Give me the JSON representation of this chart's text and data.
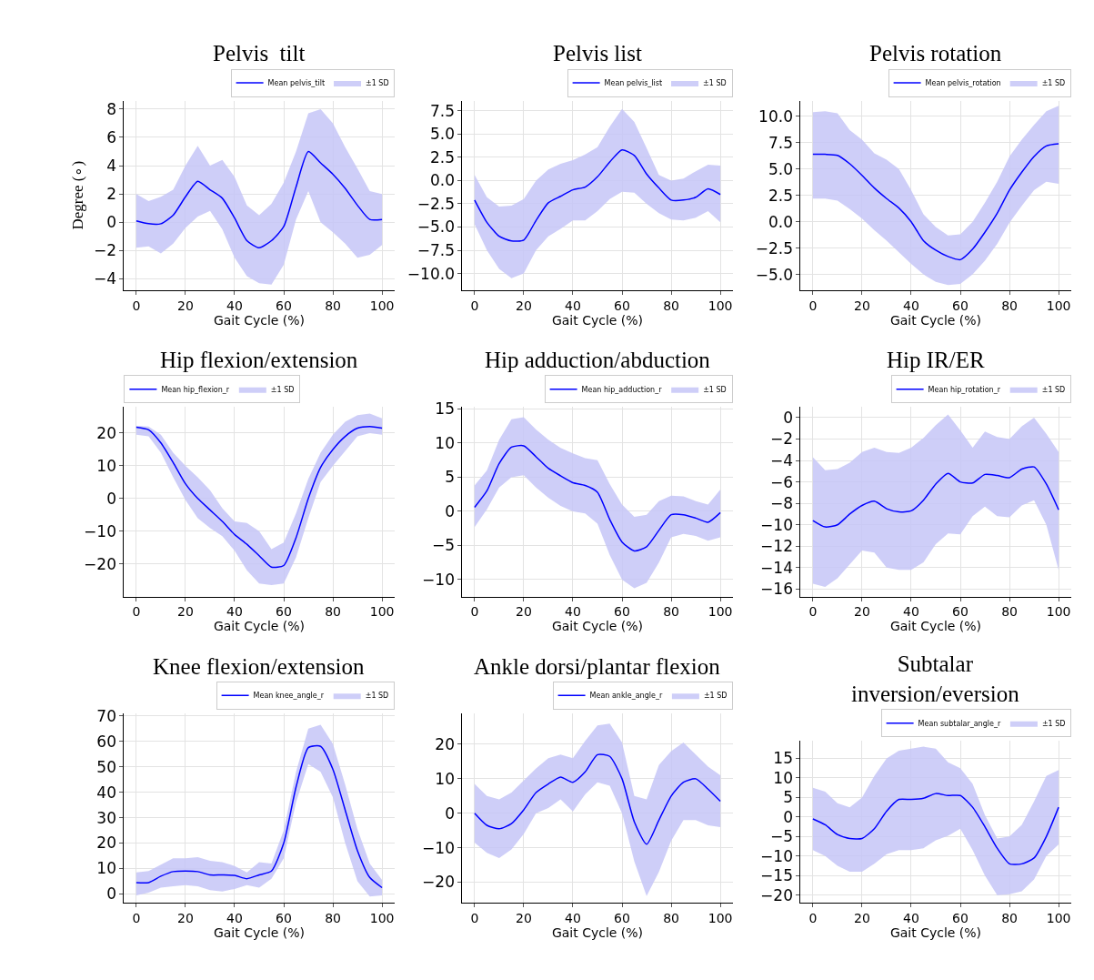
{
  "chart_data": [
    {
      "type": "line",
      "title": "Pelvis  tilt",
      "xlabel": "Gait Cycle (%)",
      "ylabel": "Degree (∘)",
      "x": [
        0,
        5,
        10,
        15,
        20,
        25,
        30,
        35,
        40,
        45,
        50,
        55,
        60,
        65,
        70,
        75,
        80,
        85,
        90,
        95,
        100
      ],
      "xlim": [
        -5,
        105
      ],
      "xticks": [
        0,
        20,
        40,
        60,
        80,
        100
      ],
      "ylim": [
        -4.8,
        8.6
      ],
      "yticks": [
        -4,
        -2,
        0,
        2,
        4,
        6,
        8
      ],
      "grid": true,
      "legend": "top right",
      "series": [
        {
          "name": "Mean pelvis_tilt",
          "color": "#0000ff",
          "values": [
            0.1,
            -0.1,
            -0.1,
            0.5,
            1.8,
            2.9,
            2.3,
            1.7,
            0.3,
            -1.3,
            -1.8,
            -1.3,
            -0.3,
            2.5,
            5.0,
            4.2,
            3.4,
            2.4,
            1.2,
            0.2,
            0.2
          ]
        },
        {
          "name": "±1 SD",
          "type": "area",
          "color": "#c6c6f7",
          "values": [
            null,
            null,
            null,
            null,
            null,
            null,
            null,
            null,
            null,
            null,
            null,
            null,
            null,
            null,
            null,
            null,
            null,
            null,
            null,
            null,
            null
          ],
          "upper": [
            2.0,
            1.5,
            1.8,
            2.3,
            4.0,
            5.4,
            4.0,
            4.4,
            3.2,
            1.2,
            0.5,
            1.3,
            2.8,
            5.0,
            7.7,
            8.0,
            7.0,
            5.3,
            3.8,
            2.2,
            2.0
          ],
          "lower": [
            -1.8,
            -1.7,
            -2.2,
            -1.5,
            -0.4,
            0.4,
            0.8,
            -0.5,
            -2.5,
            -3.8,
            -4.3,
            -4.4,
            -3.0,
            0.2,
            2.2,
            0.0,
            -0.7,
            -1.5,
            -2.5,
            -2.3,
            -1.6
          ]
        }
      ]
    },
    {
      "type": "line",
      "title": "Pelvis list",
      "xlabel": "Gait Cycle (%)",
      "x": [
        0,
        5,
        10,
        15,
        20,
        25,
        30,
        35,
        40,
        45,
        50,
        55,
        60,
        65,
        70,
        75,
        80,
        85,
        90,
        95,
        100
      ],
      "xlim": [
        -5,
        105
      ],
      "xticks": [
        0,
        20,
        40,
        60,
        80,
        100
      ],
      "ylim": [
        -11.8,
        8.6
      ],
      "yticks": [
        {
          "value": -10,
          "label": "−10.0"
        },
        {
          "value": -7.5,
          "label": "−7.5"
        },
        {
          "value": -5,
          "label": "−5.0"
        },
        {
          "value": -2.5,
          "label": "−2.5"
        },
        {
          "value": 0,
          "label": "0.0"
        },
        {
          "value": 2.5,
          "label": "2.5"
        },
        {
          "value": 5,
          "label": "5.0"
        },
        {
          "value": 7.5,
          "label": "7.5"
        }
      ],
      "grid": true,
      "legend": "top right",
      "series": [
        {
          "name": "Mean pelvis_list",
          "color": "#0000ff",
          "values": [
            -2.1,
            -4.5,
            -6.0,
            -6.5,
            -6.4,
            -4.3,
            -2.4,
            -1.7,
            -1.0,
            -0.7,
            0.4,
            2.0,
            3.3,
            2.7,
            0.7,
            -0.8,
            -2.1,
            -2.1,
            -1.8,
            -0.9,
            -1.5
          ]
        },
        {
          "name": "±1 SD",
          "type": "area",
          "color": "#c6c6f7",
          "values": [
            null,
            null,
            null,
            null,
            null,
            null,
            null,
            null,
            null,
            null,
            null,
            null,
            null,
            null,
            null,
            null,
            null,
            null,
            null,
            null,
            null
          ],
          "upper": [
            0.6,
            -1.8,
            -2.8,
            -2.7,
            -2.0,
            0.0,
            1.2,
            1.8,
            2.2,
            2.8,
            3.6,
            5.8,
            7.7,
            6.3,
            3.5,
            0.6,
            0.0,
            0.2,
            1.0,
            1.7,
            1.6
          ],
          "lower": [
            -4.7,
            -7.5,
            -9.5,
            -10.5,
            -10.0,
            -7.5,
            -6.0,
            -5.2,
            -4.3,
            -4.3,
            -3.3,
            -2.0,
            -1.2,
            -1.3,
            -2.5,
            -3.5,
            -4.2,
            -4.3,
            -4.0,
            -3.3,
            -4.5
          ]
        }
      ]
    },
    {
      "type": "line",
      "title": "Pelvis rotation",
      "xlabel": "Gait Cycle (%)",
      "x": [
        0,
        5,
        10,
        15,
        20,
        25,
        30,
        35,
        40,
        45,
        50,
        55,
        60,
        65,
        70,
        75,
        80,
        85,
        90,
        95,
        100
      ],
      "xlim": [
        -5,
        105
      ],
      "xticks": [
        0,
        20,
        40,
        60,
        80,
        100
      ],
      "ylim": [
        -6.5,
        11.5
      ],
      "yticks": [
        {
          "value": -5,
          "label": "−5.0"
        },
        {
          "value": -2.5,
          "label": "−2.5"
        },
        {
          "value": 0,
          "label": "0.0"
        },
        {
          "value": 2.5,
          "label": "2.5"
        },
        {
          "value": 5,
          "label": "5.0"
        },
        {
          "value": 7.5,
          "label": "7.5"
        },
        {
          "value": 10,
          "label": "10.0"
        }
      ],
      "grid": true,
      "legend": "top right",
      "series": [
        {
          "name": "Mean pelvis_rotation",
          "color": "#0000ff",
          "values": [
            6.4,
            6.4,
            6.3,
            5.5,
            4.4,
            3.2,
            2.2,
            1.3,
            0.0,
            -1.8,
            -2.7,
            -3.3,
            -3.6,
            -2.6,
            -1.0,
            0.8,
            3.0,
            4.7,
            6.2,
            7.2,
            7.4
          ]
        },
        {
          "name": "±1 SD",
          "type": "area",
          "color": "#c6c6f7",
          "values": [
            null,
            null,
            null,
            null,
            null,
            null,
            null,
            null,
            null,
            null,
            null,
            null,
            null,
            null,
            null,
            null,
            null,
            null,
            null,
            null,
            null
          ],
          "upper": [
            10.4,
            10.5,
            10.3,
            8.7,
            7.8,
            6.5,
            5.9,
            5.0,
            3.0,
            0.7,
            -0.5,
            -1.3,
            -1.2,
            0.0,
            1.8,
            3.8,
            6.2,
            7.8,
            9.2,
            10.5,
            11.0
          ],
          "lower": [
            2.2,
            2.2,
            2.0,
            1.2,
            0.3,
            -0.8,
            -1.8,
            -2.9,
            -4.0,
            -5.0,
            -5.7,
            -6.0,
            -5.9,
            -5.0,
            -3.7,
            -2.1,
            -0.1,
            1.5,
            3.0,
            3.8,
            3.6
          ]
        }
      ]
    },
    {
      "type": "line",
      "title": "Hip flexion/extension",
      "xlabel": "Gait Cycle (%)",
      "x": [
        0,
        5,
        10,
        15,
        20,
        25,
        30,
        35,
        40,
        45,
        50,
        55,
        60,
        65,
        70,
        75,
        80,
        85,
        90,
        95,
        100
      ],
      "xlim": [
        -5,
        105
      ],
      "xticks": [
        0,
        20,
        40,
        60,
        80,
        100
      ],
      "ylim": [
        -30,
        28
      ],
      "yticks": [
        -20,
        -10,
        0,
        10,
        20
      ],
      "grid": true,
      "legend": "top left",
      "series": [
        {
          "name": "Mean hip_flexion_r",
          "color": "#0000ff",
          "values": [
            21.8,
            21.0,
            17.0,
            11.0,
            4.5,
            0.0,
            -3.5,
            -7.0,
            -11.0,
            -14.0,
            -17.5,
            -21.0,
            -20.5,
            -12.0,
            0.0,
            9.5,
            15.0,
            19.0,
            21.5,
            22.0,
            21.5
          ]
        },
        {
          "name": "±1 SD",
          "type": "area",
          "color": "#c6c6f7",
          "values": [
            null,
            null,
            null,
            null,
            null,
            null,
            null,
            null,
            null,
            null,
            null,
            null,
            null,
            null,
            null,
            null,
            null,
            null,
            null,
            null,
            null
          ],
          "upper": [
            22.2,
            22.0,
            19.5,
            14.0,
            10.0,
            6.5,
            2.5,
            -3.0,
            -7.0,
            -7.5,
            -10.0,
            -15.5,
            -13.5,
            -4.5,
            6.0,
            14.0,
            19.5,
            23.5,
            25.5,
            26.0,
            24.5
          ],
          "lower": [
            19.5,
            19.0,
            14.0,
            6.5,
            -0.5,
            -6.0,
            -9.0,
            -11.5,
            -16.0,
            -22.0,
            -26.0,
            -26.5,
            -26.0,
            -18.0,
            -6.0,
            5.0,
            10.0,
            14.5,
            19.0,
            20.0,
            19.5
          ]
        }
      ]
    },
    {
      "type": "line",
      "title": "Hip adduction/abduction",
      "xlabel": "Gait Cycle (%)",
      "x": [
        0,
        5,
        10,
        15,
        20,
        25,
        30,
        35,
        40,
        45,
        50,
        55,
        60,
        65,
        70,
        75,
        80,
        85,
        90,
        95,
        100
      ],
      "xlim": [
        -5,
        105
      ],
      "xticks": [
        0,
        20,
        40,
        60,
        80,
        100
      ],
      "ylim": [
        -12.5,
        15.3
      ],
      "yticks": [
        -10,
        -5,
        0,
        5,
        10,
        15
      ],
      "grid": true,
      "legend": "top right",
      "series": [
        {
          "name": "Mean hip_adduction_r",
          "color": "#0000ff",
          "values": [
            0.6,
            3.0,
            7.0,
            9.4,
            9.6,
            8.0,
            6.3,
            5.2,
            4.2,
            3.8,
            2.8,
            -1.2,
            -4.5,
            -5.8,
            -5.2,
            -2.8,
            -0.5,
            -0.5,
            -1.0,
            -1.6,
            -0.2
          ]
        },
        {
          "name": "±1 SD",
          "type": "area",
          "color": "#c6c6f7",
          "values": [
            null,
            null,
            null,
            null,
            null,
            null,
            null,
            null,
            null,
            null,
            null,
            null,
            null,
            null,
            null,
            null,
            null,
            null,
            null,
            null,
            null
          ],
          "upper": [
            3.8,
            6.0,
            10.5,
            13.5,
            13.8,
            12.0,
            10.5,
            9.3,
            8.5,
            7.8,
            7.5,
            4.0,
            1.0,
            -0.8,
            -0.5,
            1.5,
            2.3,
            2.2,
            1.5,
            1.0,
            3.2
          ],
          "lower": [
            -2.3,
            0.3,
            3.5,
            5.0,
            5.3,
            3.5,
            2.0,
            0.8,
            0.0,
            -0.3,
            -1.8,
            -6.4,
            -10.0,
            -11.3,
            -10.5,
            -7.5,
            -3.8,
            -3.3,
            -3.6,
            -4.3,
            -3.8
          ]
        }
      ]
    },
    {
      "type": "line",
      "title": "Hip IR/ER",
      "xlabel": "Gait Cycle (%)",
      "x": [
        0,
        5,
        10,
        15,
        20,
        25,
        30,
        35,
        40,
        45,
        50,
        55,
        60,
        65,
        70,
        75,
        80,
        85,
        90,
        95,
        100
      ],
      "xlim": [
        -5,
        105
      ],
      "xticks": [
        0,
        20,
        40,
        60,
        80,
        100
      ],
      "ylim": [
        -16.7,
        1.0
      ],
      "yticks": [
        -16,
        -14,
        -12,
        -10,
        -8,
        -6,
        -4,
        -2,
        0
      ],
      "grid": true,
      "legend": "top right",
      "series": [
        {
          "name": "Mean hip_rotation_r",
          "color": "#0000ff",
          "values": [
            -9.6,
            -10.2,
            -10.0,
            -9.0,
            -8.2,
            -7.8,
            -8.5,
            -8.8,
            -8.7,
            -7.7,
            -6.2,
            -5.2,
            -6.0,
            -6.1,
            -5.3,
            -5.4,
            -5.6,
            -4.8,
            -4.6,
            -6.2,
            -8.6
          ]
        },
        {
          "name": "±1 SD",
          "type": "area",
          "color": "#c6c6f7",
          "values": [
            null,
            null,
            null,
            null,
            null,
            null,
            null,
            null,
            null,
            null,
            null,
            null,
            null,
            null,
            null,
            null,
            null,
            null,
            null,
            null,
            null
          ],
          "upper": [
            -3.7,
            -4.9,
            -4.8,
            -4.2,
            -3.2,
            -2.8,
            -3.2,
            -3.3,
            -2.8,
            -1.9,
            -0.7,
            0.3,
            -1.2,
            -2.8,
            -1.3,
            -1.8,
            -2.0,
            -0.8,
            0.0,
            -1.5,
            -3.2
          ],
          "lower": [
            -15.5,
            -15.8,
            -15.0,
            -13.7,
            -12.4,
            -12.6,
            -14.0,
            -14.2,
            -14.2,
            -13.5,
            -11.8,
            -10.8,
            -10.9,
            -9.2,
            -8.3,
            -9.2,
            -9.3,
            -8.2,
            -7.7,
            -10.0,
            -14.2
          ]
        }
      ]
    },
    {
      "type": "line",
      "title": "Knee flexion/extension",
      "xlabel": "Gait Cycle (%)",
      "x": [
        0,
        5,
        10,
        15,
        20,
        25,
        30,
        35,
        40,
        45,
        50,
        55,
        60,
        65,
        70,
        75,
        80,
        85,
        90,
        95,
        100
      ],
      "xlim": [
        -5,
        105
      ],
      "xticks": [
        0,
        20,
        40,
        60,
        80,
        100
      ],
      "ylim": [
        -3.5,
        71
      ],
      "yticks": [
        0,
        10,
        20,
        30,
        40,
        50,
        60,
        70
      ],
      "grid": true,
      "legend": "top right",
      "series": [
        {
          "name": "Mean knee_angle_r",
          "color": "#0000ff",
          "values": [
            4.5,
            4.5,
            7.0,
            8.8,
            9.0,
            8.8,
            7.5,
            7.5,
            7.3,
            6.0,
            7.5,
            9.0,
            20.0,
            42.0,
            57.5,
            58.0,
            49.0,
            33.0,
            17.0,
            6.5,
            2.5
          ]
        },
        {
          "name": "±1 SD",
          "type": "area",
          "color": "#c6c6f7",
          "values": [
            null,
            null,
            null,
            null,
            null,
            null,
            null,
            null,
            null,
            null,
            null,
            null,
            null,
            null,
            null,
            null,
            null,
            null,
            null,
            null,
            null
          ],
          "upper": [
            8.5,
            9.0,
            11.5,
            14.0,
            14.0,
            14.5,
            13.0,
            12.5,
            11.0,
            8.5,
            12.5,
            12.0,
            25.0,
            48.0,
            65.0,
            66.5,
            59.0,
            43.0,
            25.5,
            12.0,
            5.5
          ],
          "lower": [
            -0.5,
            0.5,
            2.5,
            3.0,
            3.5,
            3.0,
            1.5,
            1.0,
            2.0,
            3.5,
            2.5,
            6.0,
            14.0,
            36.0,
            51.0,
            48.0,
            38.0,
            20.0,
            5.0,
            -1.0,
            -0.5
          ]
        }
      ]
    },
    {
      "type": "line",
      "title": "Ankle dorsi/plantar flexion",
      "xlabel": "Gait Cycle (%)",
      "x": [
        0,
        5,
        10,
        15,
        20,
        25,
        30,
        35,
        40,
        45,
        50,
        55,
        60,
        65,
        70,
        75,
        80,
        85,
        90,
        95,
        100
      ],
      "xlim": [
        -5,
        105
      ],
      "xticks": [
        0,
        20,
        40,
        60,
        80,
        100
      ],
      "ylim": [
        -26,
        29
      ],
      "yticks": [
        -20,
        -10,
        0,
        10,
        20
      ],
      "grid": true,
      "legend": "top right",
      "series": [
        {
          "name": "Mean ankle_angle_r",
          "color": "#0000ff",
          "values": [
            0.0,
            -3.5,
            -4.5,
            -3.0,
            1.0,
            6.0,
            8.5,
            10.5,
            9.0,
            12.0,
            17.0,
            16.5,
            10.0,
            -2.5,
            -9.0,
            -2.0,
            5.0,
            9.0,
            10.0,
            7.0,
            3.5
          ]
        },
        {
          "name": "±1 SD",
          "type": "area",
          "color": "#c6c6f7",
          "values": [
            null,
            null,
            null,
            null,
            null,
            null,
            null,
            null,
            null,
            null,
            null,
            null,
            null,
            null,
            null,
            null,
            null,
            null,
            null,
            null,
            null
          ],
          "upper": [
            8.5,
            5.0,
            4.0,
            6.0,
            9.5,
            13.0,
            16.0,
            17.0,
            16.0,
            21.0,
            25.5,
            26.0,
            20.5,
            5.0,
            4.0,
            14.0,
            18.0,
            20.5,
            17.0,
            13.5,
            11.0
          ],
          "lower": [
            -8.5,
            -11.5,
            -13.0,
            -10.5,
            -6.0,
            0.0,
            1.5,
            4.0,
            0.5,
            5.5,
            9.0,
            8.0,
            0.0,
            -14.0,
            -24.0,
            -17.0,
            -8.0,
            -2.0,
            -2.0,
            -3.5,
            -4.0
          ]
        }
      ]
    },
    {
      "type": "line",
      "title": "Subtalar\ninversion/eversion",
      "xlabel": "Gait Cycle (%)",
      "x": [
        0,
        5,
        10,
        15,
        20,
        25,
        30,
        35,
        40,
        45,
        50,
        55,
        60,
        65,
        70,
        75,
        80,
        85,
        90,
        95,
        100
      ],
      "xlim": [
        -5,
        105
      ],
      "xticks": [
        0,
        20,
        40,
        60,
        80,
        100
      ],
      "ylim": [
        -22,
        19.5
      ],
      "yticks": [
        -20,
        -15,
        -10,
        -5,
        0,
        5,
        10,
        15
      ],
      "grid": true,
      "legend": "top right",
      "series": [
        {
          "name": "Mean subtalar_angle_r",
          "color": "#0000ff",
          "values": [
            -0.5,
            -2.0,
            -4.5,
            -5.5,
            -5.5,
            -3.0,
            1.5,
            4.5,
            4.5,
            4.8,
            6.0,
            5.5,
            5.5,
            2.5,
            -2.5,
            -8.0,
            -12.0,
            -12.0,
            -10.5,
            -5.0,
            2.5
          ]
        },
        {
          "name": "±1 SD",
          "type": "area",
          "color": "#c6c6f7",
          "values": [
            null,
            null,
            null,
            null,
            null,
            null,
            null,
            null,
            null,
            null,
            null,
            null,
            null,
            null,
            null,
            null,
            null,
            null,
            null,
            null,
            null
          ],
          "upper": [
            7.5,
            6.5,
            3.5,
            2.5,
            5.0,
            10.5,
            15.0,
            17.0,
            17.5,
            18.0,
            17.5,
            14.0,
            12.5,
            8.5,
            0.5,
            -5.5,
            -5.0,
            -2.0,
            4.0,
            10.5,
            12.0
          ],
          "lower": [
            -8.5,
            -10.0,
            -12.5,
            -14.0,
            -14.0,
            -12.0,
            -9.5,
            -8.5,
            -8.5,
            -8.0,
            -6.0,
            -4.8,
            -3.0,
            -8.5,
            -15.0,
            -20.0,
            -19.8,
            -19.0,
            -16.0,
            -10.0,
            -7.0
          ]
        }
      ]
    }
  ]
}
